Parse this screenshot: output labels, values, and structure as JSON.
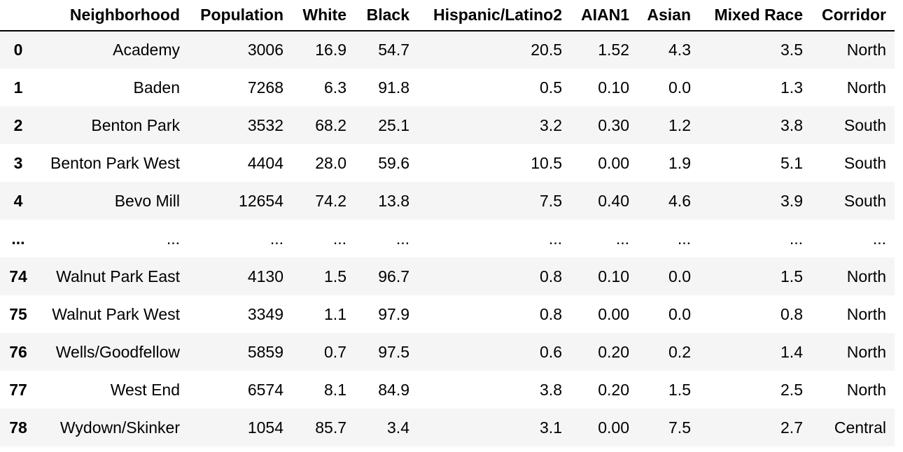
{
  "table": {
    "columns": [
      "",
      "Neighborhood",
      "Population",
      "White",
      "Black",
      "Hispanic/Latino2",
      "AIAN1",
      "Asian",
      "Mixed Race",
      "Corridor"
    ],
    "rows": [
      {
        "index": "0",
        "cells": [
          "Academy",
          "3006",
          "16.9",
          "54.7",
          "20.5",
          "1.52",
          "4.3",
          "3.5",
          "North"
        ]
      },
      {
        "index": "1",
        "cells": [
          "Baden",
          "7268",
          "6.3",
          "91.8",
          "0.5",
          "0.10",
          "0.0",
          "1.3",
          "North"
        ]
      },
      {
        "index": "2",
        "cells": [
          "Benton Park",
          "3532",
          "68.2",
          "25.1",
          "3.2",
          "0.30",
          "1.2",
          "3.8",
          "South"
        ]
      },
      {
        "index": "3",
        "cells": [
          "Benton Park West",
          "4404",
          "28.0",
          "59.6",
          "10.5",
          "0.00",
          "1.9",
          "5.1",
          "South"
        ]
      },
      {
        "index": "4",
        "cells": [
          "Bevo Mill",
          "12654",
          "74.2",
          "13.8",
          "7.5",
          "0.40",
          "4.6",
          "3.9",
          "South"
        ]
      },
      {
        "index": "...",
        "cells": [
          "...",
          "...",
          "...",
          "...",
          "...",
          "...",
          "...",
          "...",
          "..."
        ]
      },
      {
        "index": "74",
        "cells": [
          "Walnut Park East",
          "4130",
          "1.5",
          "96.7",
          "0.8",
          "0.10",
          "0.0",
          "1.5",
          "North"
        ]
      },
      {
        "index": "75",
        "cells": [
          "Walnut Park West",
          "3349",
          "1.1",
          "97.9",
          "0.8",
          "0.00",
          "0.0",
          "0.8",
          "North"
        ]
      },
      {
        "index": "76",
        "cells": [
          "Wells/Goodfellow",
          "5859",
          "0.7",
          "97.5",
          "0.6",
          "0.20",
          "0.2",
          "1.4",
          "North"
        ]
      },
      {
        "index": "77",
        "cells": [
          "West End",
          "6574",
          "8.1",
          "84.9",
          "3.8",
          "0.20",
          "1.5",
          "2.5",
          "North"
        ]
      },
      {
        "index": "78",
        "cells": [
          "Wydown/Skinker",
          "1054",
          "85.7",
          "3.4",
          "3.1",
          "0.00",
          "7.5",
          "2.7",
          "Central"
        ]
      }
    ]
  },
  "colors": {
    "stripe": "#f5f5f5",
    "background": "#ffffff",
    "header_rule": "#000000"
  }
}
